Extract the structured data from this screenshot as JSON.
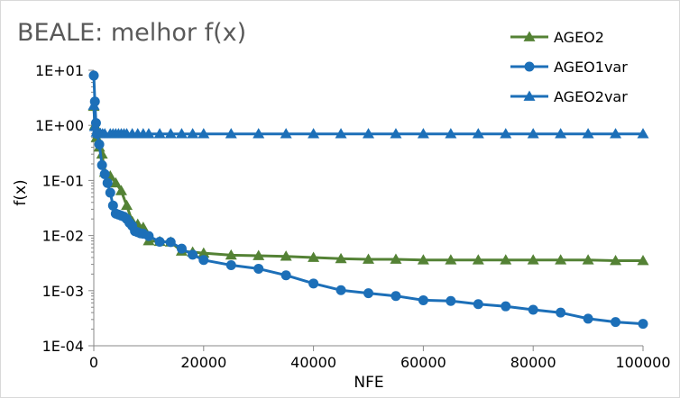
{
  "chart_data": {
    "type": "line",
    "title": "BEALE: melhor f(x)",
    "xlabel": "NFE",
    "ylabel": "f(x)",
    "xscale": "linear",
    "yscale": "log",
    "xlim": [
      0,
      100000
    ],
    "ylim": [
      0.0001,
      10
    ],
    "xticks": [
      0,
      20000,
      40000,
      60000,
      80000,
      100000
    ],
    "xtick_labels": [
      "0",
      "20000",
      "40000",
      "60000",
      "80000",
      "100000"
    ],
    "yticks": [
      10,
      1,
      0.1,
      0.01,
      0.001,
      0.0001
    ],
    "ytick_labels": [
      "1E+01",
      "1E+00",
      "1E-01",
      "1E-02",
      "1E-03",
      "1E-04"
    ],
    "grid": false,
    "legend_position": "top-right",
    "series": [
      {
        "name": "AGEO2",
        "color": "#548235",
        "marker": "triangle",
        "x": [
          0,
          200,
          500,
          1000,
          1500,
          2000,
          3000,
          4000,
          5000,
          6000,
          7000,
          8000,
          9000,
          10000,
          12000,
          14000,
          16000,
          18000,
          20000,
          25000,
          30000,
          35000,
          40000,
          45000,
          50000,
          55000,
          60000,
          65000,
          70000,
          75000,
          80000,
          85000,
          90000,
          95000,
          100000
        ],
        "y": [
          2.2,
          1.0,
          0.6,
          0.4,
          0.3,
          0.14,
          0.12,
          0.09,
          0.065,
          0.035,
          0.018,
          0.016,
          0.014,
          0.008,
          0.0078,
          0.0076,
          0.0052,
          0.005,
          0.0048,
          0.0044,
          0.0043,
          0.0042,
          0.004,
          0.0038,
          0.0037,
          0.0037,
          0.0036,
          0.0036,
          0.0036,
          0.0036,
          0.0036,
          0.0036,
          0.0036,
          0.0035,
          0.0035
        ]
      },
      {
        "name": "AGEO1var",
        "color": "#1C6FB8",
        "marker": "circle",
        "x": [
          0,
          200,
          400,
          600,
          1000,
          1500,
          2000,
          2500,
          3000,
          3500,
          4000,
          4500,
          5000,
          5500,
          6000,
          6500,
          7000,
          7500,
          8000,
          8500,
          9000,
          10000,
          12000,
          14000,
          16000,
          18000,
          20000,
          25000,
          30000,
          35000,
          40000,
          45000,
          50000,
          55000,
          60000,
          65000,
          70000,
          75000,
          80000,
          85000,
          90000,
          95000,
          100000
        ],
        "y": [
          8.0,
          2.7,
          1.1,
          0.7,
          0.45,
          0.19,
          0.13,
          0.09,
          0.06,
          0.035,
          0.025,
          0.024,
          0.023,
          0.022,
          0.02,
          0.017,
          0.015,
          0.012,
          0.0115,
          0.011,
          0.0108,
          0.0098,
          0.0077,
          0.0076,
          0.0058,
          0.0045,
          0.0036,
          0.0029,
          0.0025,
          0.0019,
          0.00135,
          0.00102,
          0.0009,
          0.0008,
          0.00067,
          0.00065,
          0.00057,
          0.00052,
          0.00045,
          0.0004,
          0.00031,
          0.00027,
          0.00025
        ]
      },
      {
        "name": "AGEO2var",
        "color": "#1C6FB8",
        "marker": "triangle",
        "x": [
          0,
          200,
          500,
          800,
          1200,
          1600,
          2000,
          3000,
          3500,
          4000,
          4500,
          5000,
          5500,
          6000,
          7000,
          8000,
          9000,
          10000,
          12000,
          14000,
          16000,
          18000,
          20000,
          25000,
          30000,
          35000,
          40000,
          45000,
          50000,
          55000,
          60000,
          65000,
          70000,
          75000,
          80000,
          85000,
          90000,
          95000,
          100000
        ],
        "y": [
          2.3,
          0.95,
          0.75,
          0.72,
          0.71,
          0.7,
          0.7,
          0.7,
          0.7,
          0.7,
          0.7,
          0.7,
          0.7,
          0.7,
          0.7,
          0.7,
          0.7,
          0.7,
          0.7,
          0.7,
          0.7,
          0.7,
          0.7,
          0.7,
          0.7,
          0.7,
          0.7,
          0.7,
          0.7,
          0.7,
          0.7,
          0.7,
          0.7,
          0.7,
          0.7,
          0.7,
          0.7,
          0.7,
          0.7
        ]
      }
    ]
  }
}
